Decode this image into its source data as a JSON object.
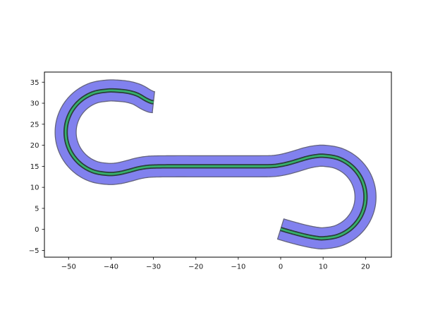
{
  "figure": {
    "background": "#ffffff",
    "axes_edge_color": "#000000",
    "tick_color": "#000000",
    "tick_label_color": "#1a1a1a"
  },
  "chart_data": {
    "type": "line",
    "title": "",
    "xlabel": "",
    "ylabel": "",
    "grid": false,
    "legend": null,
    "xlim": [
      -55.7,
      26.1
    ],
    "ylim": [
      -6.6,
      37.4
    ],
    "x_ticks": [
      -50,
      -40,
      -30,
      -20,
      -10,
      0,
      10,
      20
    ],
    "y_ticks": [
      -5,
      0,
      5,
      10,
      15,
      20,
      25,
      30,
      35
    ],
    "series": [
      {
        "name": "path-buffer-band",
        "type": "buffered-path",
        "buffer_halfwidth": 2.5,
        "fill": "#8181ee",
        "edge": "#63637e",
        "edge_width": 1.3
      },
      {
        "name": "path-centerline",
        "type": "line",
        "color": "#36b26c",
        "outline": "#2b3f3a",
        "line_width": 2.7,
        "outline_width": 6.2,
        "points": [
          [
            -30.0,
            30.25
          ],
          [
            -30.6,
            30.35
          ],
          [
            -31.8,
            30.9
          ],
          [
            -33.8,
            32.05
          ],
          [
            -36.0,
            32.7
          ],
          [
            -38.4,
            32.97
          ],
          [
            -40.8,
            33.0
          ],
          [
            -44.19,
            32.4
          ],
          [
            -47.16,
            30.68
          ],
          [
            -49.37,
            28.05
          ],
          [
            -50.55,
            24.82
          ],
          [
            -50.55,
            21.38
          ],
          [
            -49.37,
            18.15
          ],
          [
            -47.16,
            15.52
          ],
          [
            -44.19,
            13.8
          ],
          [
            -40.8,
            13.2
          ],
          [
            -38.3,
            13.33
          ],
          [
            -36.0,
            13.85
          ],
          [
            -33.6,
            14.5
          ],
          [
            -31.5,
            14.85
          ],
          [
            -29.3,
            14.97
          ],
          [
            -25.0,
            15.0
          ],
          [
            -20.0,
            15.0
          ],
          [
            -15.0,
            15.0
          ],
          [
            -10.0,
            15.0
          ],
          [
            -5.0,
            15.0
          ],
          [
            -2.0,
            15.05
          ],
          [
            0.0,
            15.3
          ],
          [
            2.0,
            15.75
          ],
          [
            4.2,
            16.4
          ],
          [
            6.2,
            17.0
          ],
          [
            8.1,
            17.38
          ],
          [
            10.2,
            17.5
          ],
          [
            13.55,
            16.91
          ],
          [
            16.5,
            15.21
          ],
          [
            18.69,
            12.6
          ],
          [
            19.85,
            9.4
          ],
          [
            19.85,
            6.0
          ],
          [
            18.69,
            2.8
          ],
          [
            16.5,
            0.19
          ],
          [
            13.55,
            -1.51
          ],
          [
            10.2,
            -2.1
          ],
          [
            8.2,
            -1.97
          ],
          [
            6.0,
            -1.55
          ],
          [
            4.0,
            -1.05
          ],
          [
            2.0,
            -0.5
          ],
          [
            0.8,
            -0.15
          ],
          [
            0.0,
            0.1
          ]
        ]
      }
    ]
  }
}
